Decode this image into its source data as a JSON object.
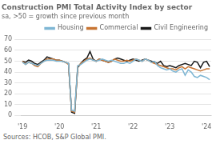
{
  "chart_data": {
    "type": "line",
    "title": "Construction PMI Total Activity Index by sector",
    "subtitle": "sa, >50 = growth since previous month",
    "source": "Sources: HCOB, S&P Global PMI.",
    "categories": [
      "'19",
      null,
      null,
      null,
      null,
      null,
      null,
      null,
      null,
      null,
      null,
      null,
      "'20",
      null,
      null,
      null,
      null,
      null,
      null,
      null,
      null,
      null,
      null,
      null,
      "'21",
      null,
      null,
      null,
      null,
      null,
      null,
      null,
      null,
      null,
      null,
      null,
      "'22",
      null,
      null,
      null,
      null,
      null,
      null,
      null,
      null,
      null,
      null,
      null,
      "'23",
      null,
      null,
      null,
      null,
      null,
      null,
      null,
      null,
      null,
      null,
      null,
      "'24",
      null
    ],
    "series": [
      {
        "name": "Housing",
        "color": "#7eb6d4",
        "values": [
          49,
          47,
          49,
          48,
          47,
          46,
          48,
          50,
          51,
          51,
          51,
          50,
          50,
          50,
          49,
          48,
          5,
          4,
          46,
          47,
          49,
          51,
          52,
          51,
          50,
          51,
          52,
          51,
          50,
          51,
          50,
          49,
          48,
          48,
          49,
          48,
          50,
          52,
          51,
          50,
          52,
          51,
          49,
          50,
          46,
          44,
          43,
          42,
          43,
          41,
          40,
          42,
          43,
          37,
          42,
          40,
          36,
          35,
          37,
          36,
          35,
          33
        ]
      },
      {
        "name": "Commercial",
        "color": "#c87533",
        "values": [
          50,
          47,
          49,
          48,
          46,
          45,
          48,
          50,
          52,
          52,
          52,
          51,
          51,
          50,
          49,
          47,
          4,
          3,
          45,
          48,
          50,
          52,
          53,
          51,
          50,
          52,
          51,
          50,
          49,
          50,
          52,
          51,
          50,
          50,
          51,
          50,
          51,
          52,
          51,
          50,
          52,
          51,
          49,
          48,
          47,
          46,
          45,
          44,
          43,
          43,
          42,
          44,
          45,
          43,
          45,
          44,
          43,
          42,
          41,
          42,
          43,
          43
        ]
      },
      {
        "name": "Civil Engineering",
        "color": "#1a1a1a",
        "values": [
          50,
          49,
          51,
          50,
          48,
          47,
          49,
          51,
          54,
          53,
          52,
          51,
          51,
          50,
          49,
          48,
          3,
          2,
          44,
          48,
          51,
          53,
          59,
          52,
          50,
          52,
          51,
          50,
          49,
          50,
          52,
          53,
          52,
          51,
          50,
          51,
          52,
          51,
          50,
          51,
          52,
          51,
          50,
          49,
          48,
          50,
          46,
          45,
          46,
          45,
          44,
          46,
          47,
          48,
          47,
          46,
          50,
          49,
          44,
          49,
          50,
          45
        ]
      }
    ],
    "ylim": [
      0,
      70
    ],
    "yticks": [
      0,
      10,
      20,
      30,
      40,
      50,
      60,
      70
    ],
    "grid": "y",
    "legend": "upper right"
  }
}
